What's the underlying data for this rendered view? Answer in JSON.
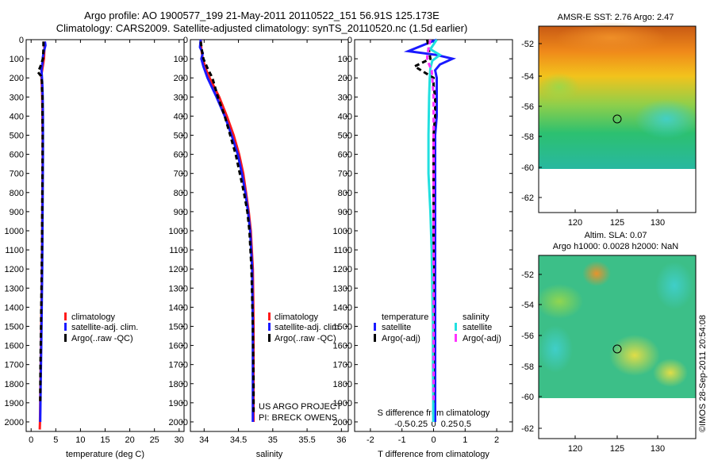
{
  "header": {
    "line1": "Argo profile: AO 1900577_199 21-May-2011 20110522_151 56.91S 125.173E",
    "line2": "Climatology: CARS2009. Satellite-adjusted climatology: synTS_20110520.nc (1.5d earlier)"
  },
  "colors": {
    "climatology": "#ff1a1a",
    "satellite": "#1a1aff",
    "argo": "#000000",
    "salinity_satellite": "#22e0e0",
    "salinity_argo": "#ff33ff"
  },
  "depth_axis": {
    "range": [
      0,
      2050
    ],
    "ticks": [
      0,
      100,
      200,
      300,
      400,
      500,
      600,
      700,
      800,
      900,
      1000,
      1100,
      1200,
      1300,
      1400,
      1500,
      1600,
      1700,
      1800,
      1900,
      2000
    ],
    "tick_labels": [
      "0",
      "100",
      "200",
      "300",
      "400",
      "500",
      "600",
      "700",
      "800",
      "900",
      "1000",
      "1100",
      "1200",
      "1300",
      "1400",
      "1500",
      "1600",
      "1700",
      "1800",
      "1900",
      "2000"
    ]
  },
  "legend_profile": {
    "climatology": "climatology",
    "satellite": "satellite-adj. clim.",
    "argo": "Argo(..raw -QC)"
  },
  "legend_diff": {
    "temperature": "temperature",
    "salinity": "salinity",
    "t_satellite": "satellite",
    "t_argo": "Argo(-adj)",
    "s_satellite": "satellite",
    "s_argo": "Argo(-adj)"
  },
  "project_note": {
    "line1": "US ARGO PROJECT",
    "line2": "PI: BRECK OWENS"
  },
  "maps": {
    "top_title": "AMSR-E SST: 2.76 Argo: 2.47",
    "bottom_title1": "Altim. SLA: 0.07",
    "bottom_title2": "Argo h1000: 0.0028 h2000: NaN",
    "lat_labels": [
      "-52",
      "-54",
      "-56",
      "-58",
      "-60",
      "-62"
    ],
    "lon_labels": [
      "120",
      "125",
      "130"
    ],
    "argo_position_label": "56.91S 125.173E"
  },
  "credit": "©IMOS 28-Sep-2011 20:54:08",
  "chart_data": [
    {
      "type": "line",
      "xlabel": "temperature (deg C)",
      "ylabel": "",
      "xlim": [
        -1,
        31
      ],
      "ylim": [
        2050,
        0
      ],
      "x_ticks": [
        0,
        5,
        10,
        15,
        20,
        25,
        30
      ],
      "x_tick_labels": [
        "0",
        "5",
        "10",
        "15",
        "20",
        "25",
        "30"
      ],
      "series": [
        {
          "name": "climatology",
          "color": "#ff1a1a",
          "dash": "solid",
          "depth": [
            10,
            50,
            100,
            150,
            180,
            200,
            250,
            300,
            400,
            500,
            600,
            800,
            1000,
            1200,
            1400,
            1600,
            1800,
            2000,
            2040
          ],
          "values": [
            2.7,
            2.7,
            2.6,
            2.3,
            2.1,
            2.1,
            2.2,
            2.25,
            2.3,
            2.35,
            2.35,
            2.3,
            2.25,
            2.2,
            2.1,
            2.0,
            1.9,
            1.8,
            1.75
          ]
        },
        {
          "name": "satellite-adj. clim.",
          "color": "#1a1aff",
          "dash": "solid",
          "depth": [
            10,
            30,
            60,
            90,
            120,
            160,
            200,
            250,
            300,
            400,
            500,
            600,
            800,
            1000,
            1200,
            1400,
            1600,
            1800,
            2000
          ],
          "values": [
            2.8,
            2.9,
            2.6,
            2.4,
            2.3,
            2.1,
            2.2,
            2.3,
            2.35,
            2.4,
            2.4,
            2.4,
            2.35,
            2.3,
            2.25,
            2.15,
            2.05,
            1.95,
            1.85
          ]
        },
        {
          "name": "Argo(..raw -QC)",
          "color": "#000000",
          "dash": "dashed",
          "depth": [
            10,
            50,
            100,
            140,
            170,
            190,
            220,
            260,
            300,
            400,
            500,
            700,
            900,
            1100,
            1300,
            1500,
            1700,
            1900
          ],
          "values": [
            2.5,
            2.5,
            2.4,
            1.9,
            1.4,
            2.0,
            2.2,
            2.2,
            2.3,
            2.3,
            2.35,
            2.3,
            2.25,
            2.2,
            2.1,
            2.0,
            1.9,
            1.85
          ]
        }
      ]
    },
    {
      "type": "line",
      "xlabel": "salinity",
      "ylabel": "",
      "xlim": [
        33.8,
        36.1
      ],
      "ylim": [
        2050,
        0
      ],
      "x_ticks": [
        34,
        34.5,
        35,
        35.5,
        36
      ],
      "x_tick_labels": [
        "34",
        "34.5",
        "35",
        "35.5",
        "36"
      ],
      "series": [
        {
          "name": "climatology",
          "color": "#ff1a1a",
          "dash": "solid",
          "depth": [
            0,
            50,
            100,
            150,
            200,
            300,
            400,
            500,
            600,
            700,
            800,
            900,
            1000,
            1200,
            1500,
            1800,
            2000
          ],
          "values": [
            33.95,
            33.96,
            33.98,
            34.02,
            34.08,
            34.22,
            34.33,
            34.43,
            34.51,
            34.57,
            34.61,
            34.65,
            34.68,
            34.71,
            34.72,
            34.72,
            34.72
          ]
        },
        {
          "name": "satellite-adj. clim.",
          "color": "#1a1aff",
          "dash": "solid",
          "depth": [
            0,
            40,
            70,
            100,
            140,
            200,
            300,
            400,
            500,
            600,
            700,
            800,
            900,
            1000,
            1200,
            1500,
            1800,
            2000
          ],
          "values": [
            33.95,
            33.94,
            33.98,
            33.96,
            33.99,
            34.05,
            34.18,
            34.3,
            34.4,
            34.49,
            34.55,
            34.6,
            34.64,
            34.67,
            34.7,
            34.71,
            34.71,
            34.71
          ]
        },
        {
          "name": "Argo(..raw -QC)",
          "color": "#000000",
          "dash": "dashed",
          "depth": [
            10,
            60,
            100,
            150,
            200,
            300,
            400,
            500,
            600,
            700,
            800,
            900,
            1000,
            1200,
            1500,
            1800,
            1950
          ],
          "values": [
            33.95,
            33.97,
            33.99,
            34.05,
            34.12,
            34.2,
            34.3,
            34.38,
            34.46,
            34.52,
            34.58,
            34.63,
            34.66,
            34.69,
            34.71,
            34.72,
            34.72
          ]
        }
      ]
    },
    {
      "type": "line",
      "xlabel": "T difference from climatology",
      "title": "S difference from climatology",
      "xlim": [
        -2.5,
        2.5
      ],
      "ylim": [
        2050,
        0
      ],
      "x_ticks": [
        -2,
        -1,
        0,
        1,
        2
      ],
      "x_tick_labels": [
        "-2",
        "-1",
        "0",
        "1",
        "2"
      ],
      "s_ticks": [
        -0.5,
        -0.25,
        0,
        0.25,
        0.5
      ],
      "s_tick_labels": [
        "-0.5",
        "-0.25",
        "0",
        "0.25",
        "0.5"
      ],
      "s_xlim": [
        -1.25,
        1.25
      ],
      "series": [
        {
          "name": "temperature satellite",
          "color": "#1a1aff",
          "dash": "solid",
          "axis": "T",
          "depth": [
            0,
            60,
            80,
            100,
            130,
            160,
            200,
            250,
            300,
            400,
            500,
            700,
            900,
            1100,
            1300,
            1500,
            1700,
            1900,
            2000
          ],
          "values": [
            0.1,
            -0.8,
            0.1,
            0.6,
            0.2,
            0.05,
            0.1,
            0.1,
            0.1,
            0.1,
            0.05,
            0.05,
            0.05,
            0.05,
            0.05,
            0.05,
            0.05,
            0.05,
            0.05
          ]
        },
        {
          "name": "temperature Argo(-adj)",
          "color": "#000000",
          "dash": "dashed",
          "axis": "T",
          "depth": [
            0,
            100,
            140,
            170,
            200,
            240,
            300,
            400,
            500,
            700,
            900,
            1100,
            1300,
            1500,
            1700,
            1900
          ],
          "values": [
            -0.2,
            -0.1,
            -0.6,
            -0.3,
            0.0,
            0.0,
            0.05,
            0.05,
            0.0,
            0.0,
            0.0,
            0.0,
            0.0,
            0.0,
            0.0,
            0.0
          ]
        },
        {
          "name": "salinity satellite",
          "color": "#22e0e0",
          "dash": "solid",
          "axis": "S",
          "depth": [
            0,
            50,
            80,
            110,
            150,
            200,
            300,
            500,
            700,
            900,
            1100,
            1300,
            1500,
            1700,
            1900,
            2000
          ],
          "values": [
            0.05,
            -0.05,
            0.1,
            -0.02,
            -0.05,
            -0.06,
            -0.07,
            -0.08,
            -0.08,
            -0.05,
            -0.03,
            -0.02,
            -0.01,
            -0.01,
            -0.005,
            -0.005
          ]
        },
        {
          "name": "salinity Argo(-adj)",
          "color": "#ff33ff",
          "dash": "dashed",
          "axis": "S",
          "depth": [
            0,
            80,
            100,
            130,
            160,
            200,
            300,
            500,
            700,
            900,
            1100,
            1300,
            1500,
            1700,
            1900
          ],
          "values": [
            -0.05,
            -0.1,
            -0.1,
            -0.07,
            -0.03,
            -0.02,
            0.0,
            0.0,
            0.0,
            0.0,
            0.0,
            0.0,
            0.0,
            0.0,
            0.0
          ]
        }
      ]
    }
  ]
}
